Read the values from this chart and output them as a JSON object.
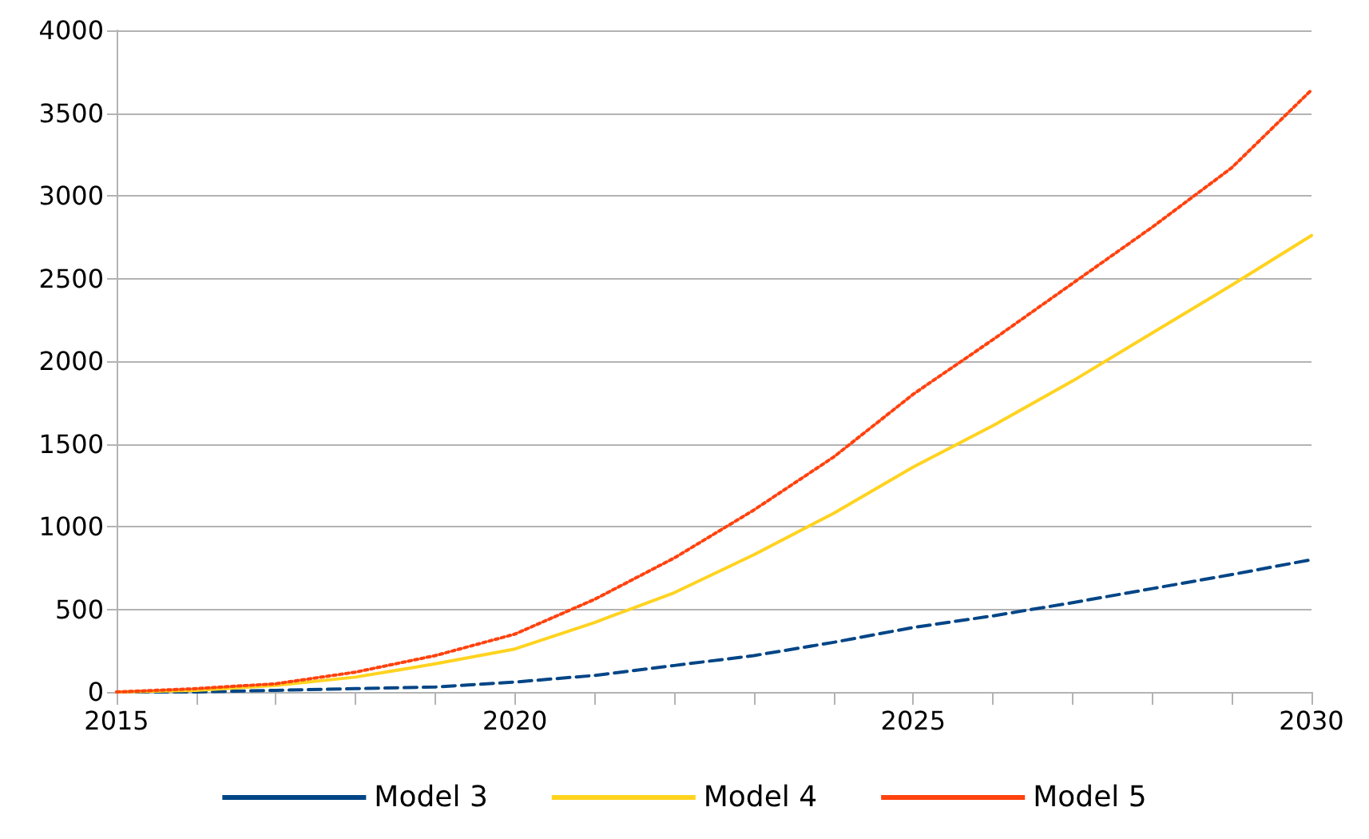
{
  "chart_data": {
    "type": "line",
    "x": [
      2015,
      2016,
      2017,
      2018,
      2019,
      2020,
      2021,
      2022,
      2023,
      2024,
      2025,
      2026,
      2027,
      2028,
      2029,
      2030
    ],
    "series": [
      {
        "name": "Model 3",
        "color": "#004586",
        "line_style": "dashed",
        "values": [
          0,
          0,
          10,
          20,
          30,
          60,
          100,
          160,
          220,
          300,
          390,
          460,
          540,
          625,
          710,
          800
        ]
      },
      {
        "name": "Model 4",
        "color": "#ffd320",
        "line_style": "solid",
        "values": [
          0,
          10,
          40,
          90,
          170,
          260,
          420,
          600,
          830,
          1080,
          1360,
          1610,
          1880,
          2170,
          2460,
          2760
        ]
      },
      {
        "name": "Model 5",
        "color": "#ff420e",
        "line_style": "dotted",
        "values": [
          0,
          20,
          50,
          120,
          220,
          350,
          560,
          810,
          1100,
          1420,
          1800,
          2130,
          2470,
          2810,
          3170,
          3640
        ]
      }
    ],
    "xlim": [
      2015,
      2030
    ],
    "xticks": [
      2015,
      {
        "value": 2016,
        "label": null
      },
      {
        "value": 2017,
        "label": null
      },
      {
        "value": 2018,
        "label": null
      },
      {
        "value": 2019,
        "label": null
      },
      2020,
      {
        "value": 2021,
        "label": null
      },
      {
        "value": 2022,
        "label": null
      },
      {
        "value": 2023,
        "label": null
      },
      {
        "value": 2024,
        "label": null
      },
      2025,
      {
        "value": 2026,
        "label": null
      },
      {
        "value": 2027,
        "label": null
      },
      {
        "value": 2028,
        "label": null
      },
      {
        "value": 2029,
        "label": null
      },
      2030
    ],
    "ylim": [
      0,
      4000
    ],
    "yticks": [
      0,
      500,
      1000,
      1500,
      2000,
      2500,
      3000,
      3500,
      4000
    ],
    "grid": "y",
    "legend": "bottom",
    "marker": "none"
  }
}
